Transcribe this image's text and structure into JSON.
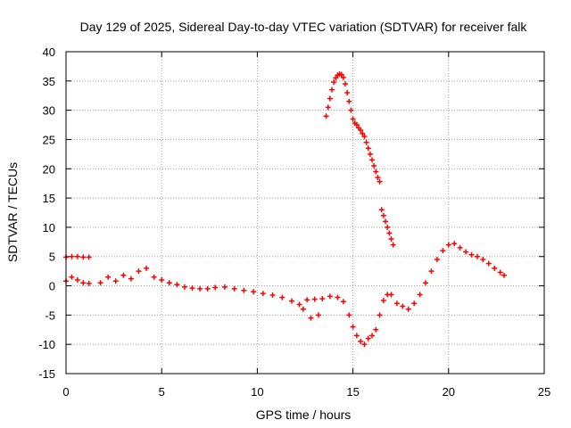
{
  "chart_data": {
    "type": "scatter",
    "title": "Day 129 of 2025, Sidereal Day-to-day VTEC variation (SDTVAR) for receiver falk",
    "xlabel": "GPS time / hours",
    "ylabel": "SDTVAR / TECUs",
    "xlim": [
      0,
      25
    ],
    "ylim": [
      -15,
      40
    ],
    "xticks": [
      0,
      5,
      10,
      15,
      20,
      25
    ],
    "yticks": [
      -15,
      -10,
      -5,
      0,
      5,
      10,
      15,
      20,
      25,
      30,
      35,
      40
    ],
    "grid": true,
    "marker": "plus",
    "series": [
      {
        "name": "SDTVAR",
        "color": "#ff0000",
        "x": [
          0.0,
          0.3,
          0.6,
          0.9,
          1.2,
          0.0,
          0.3,
          0.6,
          0.9,
          1.2,
          1.8,
          2.2,
          2.6,
          3.0,
          3.4,
          3.8,
          4.2,
          4.6,
          5.0,
          5.4,
          5.8,
          6.2,
          6.6,
          7.0,
          7.4,
          7.8,
          8.3,
          8.8,
          9.3,
          9.8,
          10.3,
          10.8,
          11.3,
          11.8,
          12.2,
          12.6,
          13.0,
          13.4,
          13.8,
          14.2,
          14.5,
          14.8,
          15.0,
          15.2,
          15.4,
          15.6,
          15.8,
          16.0,
          16.2,
          16.4,
          16.6,
          16.8,
          17.0,
          17.3,
          17.6,
          17.9,
          18.2,
          18.5,
          18.8,
          19.1,
          19.4,
          19.7,
          20.0,
          20.3,
          20.6,
          20.9,
          21.2,
          21.5,
          21.8,
          22.1,
          22.4,
          22.7,
          22.9,
          13.6,
          13.7,
          13.8,
          13.9,
          14.0,
          14.1,
          14.2,
          14.3,
          14.4,
          14.5,
          14.6,
          14.7,
          14.8,
          14.9,
          15.0,
          15.1,
          15.2,
          15.3,
          15.4,
          15.5,
          15.6,
          15.7,
          15.8,
          15.9,
          16.0,
          16.1,
          16.2,
          16.3,
          16.4,
          16.5,
          16.6,
          16.7,
          16.8,
          16.9,
          17.0,
          17.1,
          12.4,
          12.8,
          13.2
        ],
        "y": [
          0.8,
          1.5,
          1.0,
          0.5,
          0.4,
          4.9,
          5.0,
          5.0,
          4.9,
          4.9,
          0.5,
          1.5,
          0.8,
          1.8,
          1.2,
          2.5,
          3.0,
          1.5,
          1.0,
          0.5,
          0.2,
          -0.2,
          -0.4,
          -0.5,
          -0.5,
          -0.3,
          -0.2,
          -0.5,
          -0.8,
          -1.0,
          -1.3,
          -1.6,
          -2.0,
          -2.6,
          -3.2,
          -2.4,
          -2.3,
          -2.2,
          -1.8,
          -2.0,
          -2.7,
          -5.0,
          -7.0,
          -8.5,
          -9.5,
          -10.0,
          -9.0,
          -8.5,
          -7.5,
          -5.0,
          -2.5,
          -1.5,
          -1.5,
          -3.0,
          -3.5,
          -4.0,
          -3.0,
          -1.5,
          0.5,
          2.5,
          4.5,
          6.0,
          7.0,
          7.2,
          6.5,
          5.8,
          5.3,
          5.0,
          4.5,
          3.8,
          3.0,
          2.3,
          1.8,
          29.0,
          30.5,
          32.0,
          33.5,
          34.8,
          35.5,
          36.0,
          36.2,
          36.1,
          35.6,
          34.5,
          33.0,
          31.5,
          30.0,
          28.5,
          27.8,
          27.5,
          27.0,
          26.6,
          26.0,
          25.5,
          24.5,
          23.5,
          22.5,
          21.5,
          20.5,
          19.5,
          18.5,
          17.8,
          13.0,
          12.0,
          11.0,
          10.0,
          9.0,
          8.0,
          7.0,
          -4.0,
          -5.5,
          -5.0
        ]
      }
    ]
  }
}
